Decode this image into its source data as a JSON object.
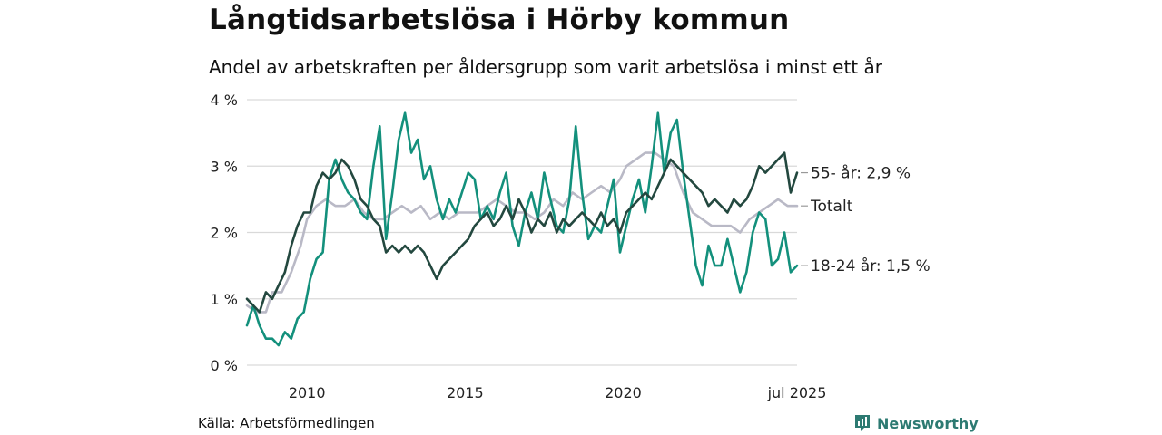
{
  "title": "Långtidsarbetslösa i Hörby kommun",
  "subtitle": "Andel av arbetskraften per åldersgrupp som varit arbetslösa i minst ett år",
  "source": "Källa: Arbetsförmedlingen",
  "brand": "Newsworthy",
  "colors": {
    "age55": "#23483f",
    "total": "#b9b9c6",
    "age1824": "#13907c",
    "grid": "#d9d9d9",
    "brand": "#2d7a72"
  },
  "chart_data": {
    "type": "line",
    "ylim": [
      0,
      4
    ],
    "xlim": [
      2008.1,
      2025.5
    ],
    "y_ticks": [
      {
        "value": 0,
        "label": "0 %"
      },
      {
        "value": 1,
        "label": "1 %"
      },
      {
        "value": 2,
        "label": "2 %"
      },
      {
        "value": 3,
        "label": "3 %"
      },
      {
        "value": 4,
        "label": "4 %"
      }
    ],
    "x_ticks": [
      {
        "value": 2010,
        "label": "2010"
      },
      {
        "value": 2015,
        "label": "2015"
      },
      {
        "value": 2020,
        "label": "2020"
      },
      {
        "value": 2025.5,
        "label": "jul 2025"
      }
    ],
    "grid": true,
    "series": [
      {
        "key": "total",
        "end_label": "Totalt",
        "color": "#b9b9c6",
        "points": [
          [
            2008.1,
            0.9
          ],
          [
            2008.4,
            0.8
          ],
          [
            2008.7,
            0.8
          ],
          [
            2008.9,
            1.1
          ],
          [
            2009.2,
            1.1
          ],
          [
            2009.5,
            1.4
          ],
          [
            2009.8,
            1.8
          ],
          [
            2010.0,
            2.2
          ],
          [
            2010.3,
            2.4
          ],
          [
            2010.6,
            2.5
          ],
          [
            2010.9,
            2.4
          ],
          [
            2011.2,
            2.4
          ],
          [
            2011.5,
            2.5
          ],
          [
            2011.8,
            2.3
          ],
          [
            2012.1,
            2.2
          ],
          [
            2012.4,
            2.2
          ],
          [
            2012.7,
            2.3
          ],
          [
            2013.0,
            2.4
          ],
          [
            2013.3,
            2.3
          ],
          [
            2013.6,
            2.4
          ],
          [
            2013.9,
            2.2
          ],
          [
            2014.2,
            2.3
          ],
          [
            2014.5,
            2.2
          ],
          [
            2014.8,
            2.3
          ],
          [
            2015.1,
            2.3
          ],
          [
            2015.4,
            2.3
          ],
          [
            2015.7,
            2.4
          ],
          [
            2016.0,
            2.5
          ],
          [
            2016.3,
            2.4
          ],
          [
            2016.6,
            2.3
          ],
          [
            2016.9,
            2.3
          ],
          [
            2017.2,
            2.2
          ],
          [
            2017.5,
            2.3
          ],
          [
            2017.8,
            2.5
          ],
          [
            2018.1,
            2.4
          ],
          [
            2018.4,
            2.6
          ],
          [
            2018.7,
            2.5
          ],
          [
            2019.0,
            2.6
          ],
          [
            2019.3,
            2.7
          ],
          [
            2019.6,
            2.6
          ],
          [
            2019.9,
            2.8
          ],
          [
            2020.1,
            3.0
          ],
          [
            2020.4,
            3.1
          ],
          [
            2020.7,
            3.2
          ],
          [
            2021.0,
            3.2
          ],
          [
            2021.3,
            3.1
          ],
          [
            2021.6,
            3.0
          ],
          [
            2021.9,
            2.6
          ],
          [
            2022.2,
            2.3
          ],
          [
            2022.5,
            2.2
          ],
          [
            2022.8,
            2.1
          ],
          [
            2023.1,
            2.1
          ],
          [
            2023.4,
            2.1
          ],
          [
            2023.7,
            2.0
          ],
          [
            2024.0,
            2.2
          ],
          [
            2024.3,
            2.3
          ],
          [
            2024.6,
            2.4
          ],
          [
            2024.9,
            2.5
          ],
          [
            2025.2,
            2.4
          ],
          [
            2025.5,
            2.4
          ]
        ]
      },
      {
        "key": "age1824",
        "end_label": "18-24 år: 1,5 %",
        "color": "#13907c",
        "points": [
          [
            2008.1,
            0.6
          ],
          [
            2008.3,
            0.9
          ],
          [
            2008.5,
            0.6
          ],
          [
            2008.7,
            0.4
          ],
          [
            2008.9,
            0.4
          ],
          [
            2009.1,
            0.3
          ],
          [
            2009.3,
            0.5
          ],
          [
            2009.5,
            0.4
          ],
          [
            2009.7,
            0.7
          ],
          [
            2009.9,
            0.8
          ],
          [
            2010.1,
            1.3
          ],
          [
            2010.3,
            1.6
          ],
          [
            2010.5,
            1.7
          ],
          [
            2010.7,
            2.8
          ],
          [
            2010.9,
            3.1
          ],
          [
            2011.1,
            2.8
          ],
          [
            2011.3,
            2.6
          ],
          [
            2011.5,
            2.5
          ],
          [
            2011.7,
            2.3
          ],
          [
            2011.9,
            2.2
          ],
          [
            2012.1,
            3.0
          ],
          [
            2012.3,
            3.6
          ],
          [
            2012.5,
            1.9
          ],
          [
            2012.7,
            2.6
          ],
          [
            2012.9,
            3.4
          ],
          [
            2013.1,
            3.8
          ],
          [
            2013.3,
            3.2
          ],
          [
            2013.5,
            3.4
          ],
          [
            2013.7,
            2.8
          ],
          [
            2013.9,
            3.0
          ],
          [
            2014.1,
            2.5
          ],
          [
            2014.3,
            2.2
          ],
          [
            2014.5,
            2.5
          ],
          [
            2014.7,
            2.3
          ],
          [
            2014.9,
            2.6
          ],
          [
            2015.1,
            2.9
          ],
          [
            2015.3,
            2.8
          ],
          [
            2015.5,
            2.2
          ],
          [
            2015.7,
            2.4
          ],
          [
            2015.9,
            2.2
          ],
          [
            2016.1,
            2.6
          ],
          [
            2016.3,
            2.9
          ],
          [
            2016.5,
            2.1
          ],
          [
            2016.7,
            1.8
          ],
          [
            2016.9,
            2.3
          ],
          [
            2017.1,
            2.6
          ],
          [
            2017.3,
            2.2
          ],
          [
            2017.5,
            2.9
          ],
          [
            2017.7,
            2.5
          ],
          [
            2017.9,
            2.1
          ],
          [
            2018.1,
            2.0
          ],
          [
            2018.3,
            2.5
          ],
          [
            2018.5,
            3.6
          ],
          [
            2018.7,
            2.6
          ],
          [
            2018.9,
            1.9
          ],
          [
            2019.1,
            2.1
          ],
          [
            2019.3,
            2.0
          ],
          [
            2019.5,
            2.4
          ],
          [
            2019.7,
            2.8
          ],
          [
            2019.9,
            1.7
          ],
          [
            2020.1,
            2.1
          ],
          [
            2020.3,
            2.5
          ],
          [
            2020.5,
            2.8
          ],
          [
            2020.7,
            2.3
          ],
          [
            2020.9,
            3.0
          ],
          [
            2021.1,
            3.8
          ],
          [
            2021.3,
            2.9
          ],
          [
            2021.5,
            3.5
          ],
          [
            2021.7,
            3.7
          ],
          [
            2021.9,
            2.9
          ],
          [
            2022.1,
            2.2
          ],
          [
            2022.3,
            1.5
          ],
          [
            2022.5,
            1.2
          ],
          [
            2022.7,
            1.8
          ],
          [
            2022.9,
            1.5
          ],
          [
            2023.1,
            1.5
          ],
          [
            2023.3,
            1.9
          ],
          [
            2023.5,
            1.5
          ],
          [
            2023.7,
            1.1
          ],
          [
            2023.9,
            1.4
          ],
          [
            2024.1,
            2.0
          ],
          [
            2024.3,
            2.3
          ],
          [
            2024.5,
            2.2
          ],
          [
            2024.7,
            1.5
          ],
          [
            2024.9,
            1.6
          ],
          [
            2025.1,
            2.0
          ],
          [
            2025.3,
            1.4
          ],
          [
            2025.5,
            1.5
          ]
        ]
      },
      {
        "key": "age55",
        "end_label": "55- år: 2,9 %",
        "color": "#23483f",
        "points": [
          [
            2008.1,
            1.0
          ],
          [
            2008.3,
            0.9
          ],
          [
            2008.5,
            0.8
          ],
          [
            2008.7,
            1.1
          ],
          [
            2008.9,
            1.0
          ],
          [
            2009.1,
            1.2
          ],
          [
            2009.3,
            1.4
          ],
          [
            2009.5,
            1.8
          ],
          [
            2009.7,
            2.1
          ],
          [
            2009.9,
            2.3
          ],
          [
            2010.1,
            2.3
          ],
          [
            2010.3,
            2.7
          ],
          [
            2010.5,
            2.9
          ],
          [
            2010.7,
            2.8
          ],
          [
            2010.9,
            2.9
          ],
          [
            2011.1,
            3.1
          ],
          [
            2011.3,
            3.0
          ],
          [
            2011.5,
            2.8
          ],
          [
            2011.7,
            2.5
          ],
          [
            2011.9,
            2.4
          ],
          [
            2012.1,
            2.2
          ],
          [
            2012.3,
            2.1
          ],
          [
            2012.5,
            1.7
          ],
          [
            2012.7,
            1.8
          ],
          [
            2012.9,
            1.7
          ],
          [
            2013.1,
            1.8
          ],
          [
            2013.3,
            1.7
          ],
          [
            2013.5,
            1.8
          ],
          [
            2013.7,
            1.7
          ],
          [
            2013.9,
            1.5
          ],
          [
            2014.1,
            1.3
          ],
          [
            2014.3,
            1.5
          ],
          [
            2014.5,
            1.6
          ],
          [
            2014.7,
            1.7
          ],
          [
            2014.9,
            1.8
          ],
          [
            2015.1,
            1.9
          ],
          [
            2015.3,
            2.1
          ],
          [
            2015.5,
            2.2
          ],
          [
            2015.7,
            2.3
          ],
          [
            2015.9,
            2.1
          ],
          [
            2016.1,
            2.2
          ],
          [
            2016.3,
            2.4
          ],
          [
            2016.5,
            2.2
          ],
          [
            2016.7,
            2.5
          ],
          [
            2016.9,
            2.3
          ],
          [
            2017.1,
            2.0
          ],
          [
            2017.3,
            2.2
          ],
          [
            2017.5,
            2.1
          ],
          [
            2017.7,
            2.3
          ],
          [
            2017.9,
            2.0
          ],
          [
            2018.1,
            2.2
          ],
          [
            2018.3,
            2.1
          ],
          [
            2018.5,
            2.2
          ],
          [
            2018.7,
            2.3
          ],
          [
            2018.9,
            2.2
          ],
          [
            2019.1,
            2.1
          ],
          [
            2019.3,
            2.3
          ],
          [
            2019.5,
            2.1
          ],
          [
            2019.7,
            2.2
          ],
          [
            2019.9,
            2.0
          ],
          [
            2020.1,
            2.3
          ],
          [
            2020.3,
            2.4
          ],
          [
            2020.5,
            2.5
          ],
          [
            2020.7,
            2.6
          ],
          [
            2020.9,
            2.5
          ],
          [
            2021.1,
            2.7
          ],
          [
            2021.3,
            2.9
          ],
          [
            2021.5,
            3.1
          ],
          [
            2021.7,
            3.0
          ],
          [
            2021.9,
            2.9
          ],
          [
            2022.1,
            2.8
          ],
          [
            2022.3,
            2.7
          ],
          [
            2022.5,
            2.6
          ],
          [
            2022.7,
            2.4
          ],
          [
            2022.9,
            2.5
          ],
          [
            2023.1,
            2.4
          ],
          [
            2023.3,
            2.3
          ],
          [
            2023.5,
            2.5
          ],
          [
            2023.7,
            2.4
          ],
          [
            2023.9,
            2.5
          ],
          [
            2024.1,
            2.7
          ],
          [
            2024.3,
            3.0
          ],
          [
            2024.5,
            2.9
          ],
          [
            2024.7,
            3.0
          ],
          [
            2024.9,
            3.1
          ],
          [
            2025.1,
            3.2
          ],
          [
            2025.3,
            2.6
          ],
          [
            2025.5,
            2.9
          ]
        ]
      }
    ]
  }
}
